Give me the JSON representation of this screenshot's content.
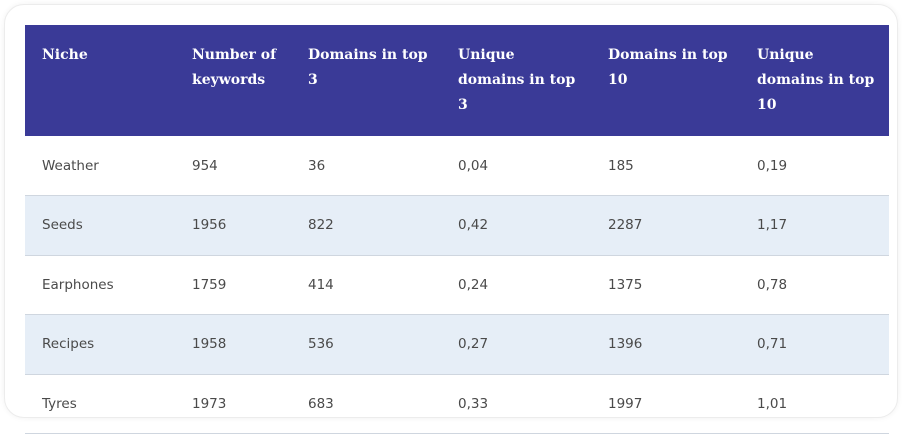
{
  "table": {
    "headers": [
      "Niche",
      "Number of keywords",
      "Domains in top 3",
      "Unique domains in top 3",
      "Domains in top 10",
      "Unique domains in top 10"
    ],
    "rows": [
      [
        "Weather",
        "954",
        "36",
        "0,04",
        "185",
        "0,19"
      ],
      [
        "Seeds",
        "1956",
        "822",
        "0,42",
        "2287",
        "1,17"
      ],
      [
        "Earphones",
        "1759",
        "414",
        "0,24",
        "1375",
        "0,78"
      ],
      [
        "Recipes",
        "1958",
        "536",
        "0,27",
        "1396",
        "0,71"
      ],
      [
        "Tyres",
        "1973",
        "683",
        "0,33",
        "1997",
        "1,01"
      ]
    ]
  },
  "colors": {
    "header_bg": "#3a3a97",
    "header_text": "#ffffff",
    "alt_row_bg": "#e6eef7",
    "body_text": "#4a4a4a"
  }
}
